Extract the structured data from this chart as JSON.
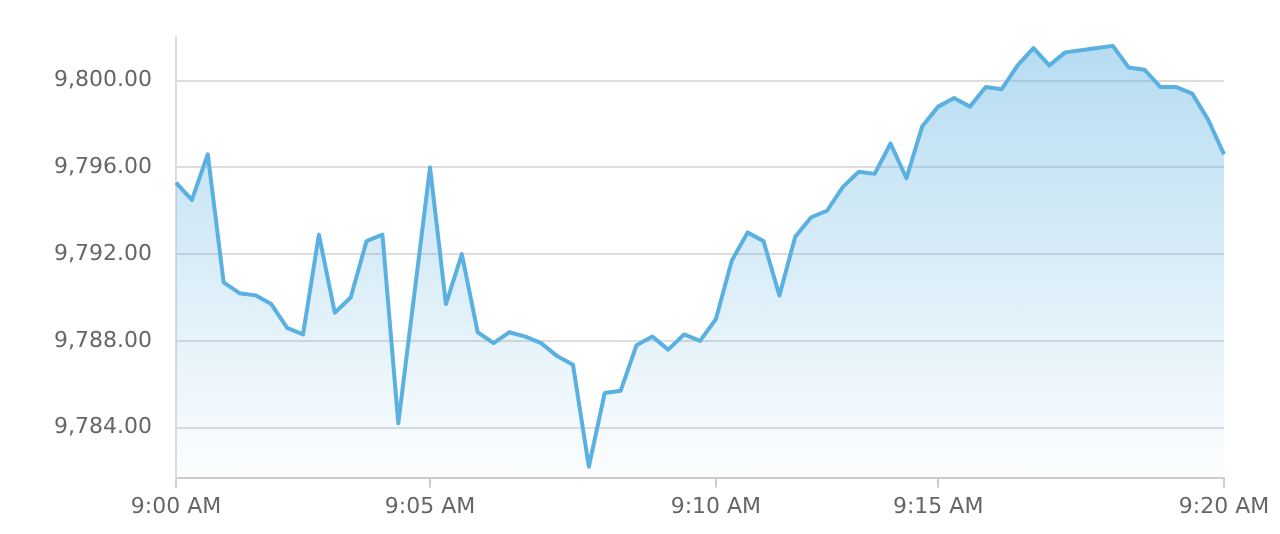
{
  "chart_data": {
    "type": "area",
    "categories": [
      "9:00 AM",
      null,
      null,
      null,
      null,
      null,
      null,
      null,
      null,
      null,
      null,
      null,
      null,
      null,
      null,
      null,
      "9:05 AM",
      null,
      null,
      null,
      null,
      null,
      null,
      null,
      null,
      null,
      null,
      null,
      null,
      null,
      null,
      null,
      null,
      null,
      "9:10 AM",
      null,
      null,
      null,
      null,
      null,
      null,
      null,
      null,
      null,
      null,
      null,
      null,
      null,
      "9:15 AM",
      null,
      null,
      null,
      null,
      null,
      null,
      null,
      null,
      null,
      null,
      null,
      null,
      null,
      null,
      null,
      null,
      null,
      "9:20 AM"
    ],
    "series": [
      {
        "color": "#5ab0e0",
        "values": [
          9795.3,
          9794.5,
          9796.6,
          9790.7,
          9790.2,
          9790.1,
          9789.7,
          9788.6,
          9788.3,
          9792.9,
          9789.3,
          9790.0,
          9792.6,
          9792.9,
          9784.2,
          9790.1,
          9796.0,
          9789.7,
          9792.0,
          9788.4,
          9787.9,
          9788.4,
          9788.2,
          9787.9,
          9787.3,
          9786.9,
          9782.2,
          9785.6,
          9785.7,
          9787.8,
          9788.2,
          9787.6,
          9788.3,
          9788.0,
          9789.0,
          9791.7,
          9793.0,
          9792.6,
          9790.1,
          9792.8,
          9793.7,
          9794.0,
          9795.1,
          9795.8,
          9795.7,
          9797.1,
          9795.5,
          9797.9,
          9798.8,
          9799.2,
          9798.8,
          9799.7,
          9799.6,
          9800.7,
          9801.5,
          9800.7,
          9801.3,
          9801.4,
          9801.5,
          9801.6,
          9800.6,
          9800.5,
          9799.7,
          9799.7,
          9799.4,
          9798.2,
          9796.6
        ]
      }
    ],
    "ylim": [
      9781.7,
      9802
    ],
    "yticks": [
      {
        "value": 9784,
        "label": "9,784.00"
      },
      {
        "value": 9788,
        "label": "9,788.00"
      },
      {
        "value": 9792,
        "label": "9,792.00"
      },
      {
        "value": 9796,
        "label": "9,796.00"
      },
      {
        "value": 9800,
        "label": "9,800.00"
      }
    ],
    "grid": "y",
    "legend": false,
    "marker": "none"
  }
}
